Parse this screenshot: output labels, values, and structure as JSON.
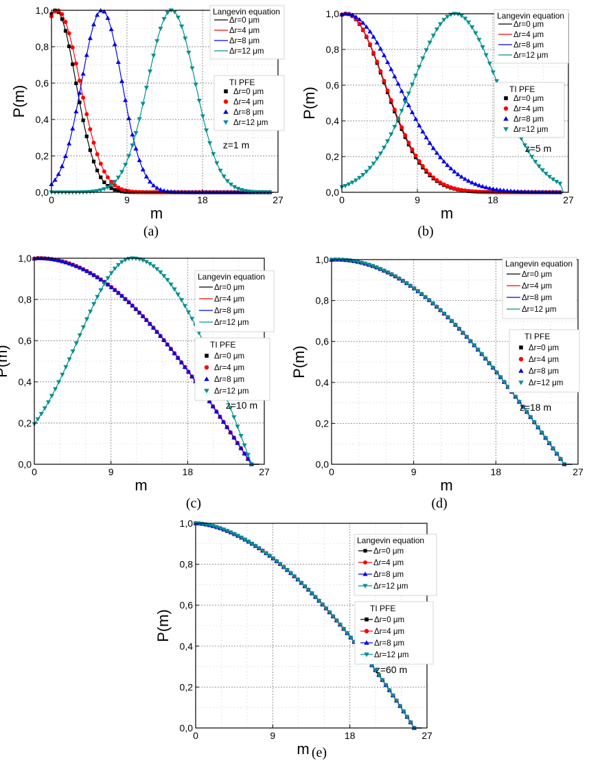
{
  "legend_titles": {
    "langevin": "Langevin equation",
    "tipfe": "TI PFE"
  },
  "series_names": [
    "Δr=0 μm",
    "Δr=4 μm",
    "Δr=8 μm",
    "Δr=12 μm"
  ],
  "series_colors": [
    "#000000",
    "#ff0000",
    "#0000ee",
    "#009090"
  ],
  "marker_shapes": [
    "square",
    "circle",
    "triangle-up",
    "triangle-down"
  ],
  "chart_data": [
    {
      "type": "line",
      "panel": "a",
      "caption": "(a)",
      "annotation": "z=1 m",
      "xlabel": "m",
      "ylabel": "P(m)",
      "xlim": [
        0,
        27
      ],
      "ylim": [
        0,
        1
      ],
      "xticks": [
        "0",
        "9",
        "18",
        "27"
      ],
      "yticks": [
        "0,0",
        "0,2",
        "0,4",
        "0,6",
        "0,8",
        "1,0"
      ],
      "model": "gauss",
      "series": [
        {
          "name": "Δr=0 μm",
          "center": 0.5,
          "width": 3.4,
          "base": 0,
          "end": 26
        },
        {
          "name": "Δr=4 μm",
          "center": 0.7,
          "width": 3.8,
          "base": 0,
          "end": 26
        },
        {
          "name": "Δr=8 μm",
          "center": 6.0,
          "width": 3.4,
          "base": 0,
          "end": 26
        },
        {
          "name": "Δr=12 μm",
          "center": 14.3,
          "width": 4.0,
          "base": 0,
          "end": 26
        }
      ]
    },
    {
      "type": "line",
      "panel": "b",
      "caption": "(b)",
      "annotation": "z=5 m",
      "xlabel": "m",
      "ylabel": "P(m)",
      "xlim": [
        0,
        27
      ],
      "ylim": [
        0,
        1
      ],
      "xticks": [
        "0",
        "9",
        "18",
        "27"
      ],
      "yticks": [
        "0,0",
        "0,2",
        "0,4",
        "0,6",
        "0,8",
        "1,0"
      ],
      "model": "gauss",
      "series": [
        {
          "name": "Δr=0 μm",
          "center": 0.5,
          "width": 6.5,
          "base": 0,
          "end": 26
        },
        {
          "name": "Δr=4 μm",
          "center": 0.5,
          "width": 6.6,
          "base": 0,
          "end": 26
        },
        {
          "name": "Δr=8 μm",
          "center": 0.5,
          "width": 8.8,
          "base": 0,
          "end": 26
        },
        {
          "name": "Δr=12 μm",
          "center": 13.5,
          "width": 7.2,
          "base": 0,
          "end": 26
        }
      ]
    },
    {
      "type": "line",
      "panel": "c",
      "caption": "(c)",
      "annotation": "z=10 m",
      "xlabel": "m",
      "ylabel": "P(m)",
      "xlim": [
        0,
        27
      ],
      "ylim": [
        0,
        1
      ],
      "xticks": [
        "0",
        "9",
        "18",
        "27"
      ],
      "yticks": [
        "0,0",
        "0,2",
        "0,4",
        "0,6",
        "0,8",
        "1,0"
      ],
      "model": "cos",
      "series": [
        {
          "name": "Δr=0 μm",
          "center": 0.5,
          "width": 10.5,
          "end": 25.5
        },
        {
          "name": "Δr=4 μm",
          "center": 0.5,
          "width": 10.7,
          "end": 25.5
        },
        {
          "name": "Δr=8 μm",
          "center": 0.5,
          "width": 12.5,
          "end": 25.5
        },
        {
          "name": "Δr=12 μm",
          "center": 11.5,
          "width": 9.0,
          "end": 25.5
        }
      ]
    },
    {
      "type": "line",
      "panel": "d",
      "caption": "(d)",
      "annotation": "z=18 m",
      "xlabel": "m",
      "ylabel": "P(m)",
      "xlim": [
        0,
        27
      ],
      "ylim": [
        0,
        1
      ],
      "xticks": [
        "0",
        "9",
        "18",
        "27"
      ],
      "yticks": [
        "0,0",
        "0,2",
        "0,4",
        "0,6",
        "0,8",
        "1,0"
      ],
      "model": "cos",
      "series": [
        {
          "name": "Δr=0 μm",
          "center": 0.5,
          "width": 13.0,
          "end": 25.5
        },
        {
          "name": "Δr=4 μm",
          "center": 0.5,
          "width": 13.1,
          "end": 25.5
        },
        {
          "name": "Δr=8 μm",
          "center": 0.5,
          "width": 14.2,
          "end": 25.5
        },
        {
          "name": "Δr=12 μm",
          "center": 0.5,
          "width": 18.5,
          "end": 25.5
        }
      ]
    },
    {
      "type": "line",
      "panel": "e",
      "caption": "(e)",
      "annotation": "z=60 m",
      "xlabel": "m",
      "ylabel": "P(m)",
      "xlim": [
        0,
        27
      ],
      "ylim": [
        0,
        1
      ],
      "xticks": [
        "0",
        "9",
        "18",
        "27"
      ],
      "yticks": [
        "0,0",
        "0,2",
        "0,4",
        "0,6",
        "0,8",
        "1,0"
      ],
      "model": "power",
      "series": [
        {
          "name": "Δr=0 μm",
          "exponent": 1.7,
          "end": 25.5
        },
        {
          "name": "Δr=4 μm",
          "exponent": 1.7,
          "end": 25.5
        },
        {
          "name": "Δr=8 μm",
          "exponent": 1.7,
          "end": 25.5
        },
        {
          "name": "Δr=12 μm",
          "exponent": 1.7,
          "end": 25.5
        }
      ]
    }
  ]
}
